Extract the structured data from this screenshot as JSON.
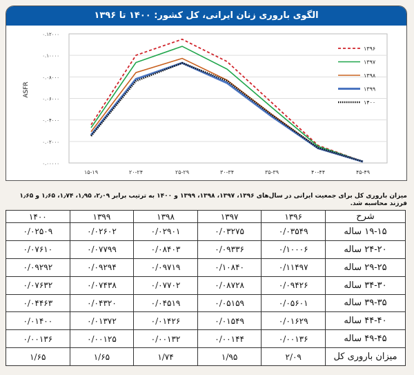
{
  "chart_data": {
    "type": "line",
    "title": "الگوی باروری زنان ایرانی، کل کشور: ۱۴۰۰ تا ۱۳۹۶",
    "ylabel": "ASFR",
    "xlabel": "",
    "ylim": [
      0,
      0.12
    ],
    "yticks": [
      "۰.۰۰۰۰۰",
      "۰.۰۲۰۰۰",
      "۰.۰۴۰۰۰",
      "۰.۰۶۰۰۰",
      "۰.۰۸۰۰۰",
      "۰.۱۰۰۰۰",
      "۰.۱۲۰۰۰"
    ],
    "categories": [
      "۱۵-۱۹",
      "۲۰-۲۴",
      "۲۵-۲۹",
      "۳۰-۳۴",
      "۳۵-۳۹",
      "۴۰-۴۴",
      "۴۵-۴۹"
    ],
    "grid": true,
    "legend": "right",
    "series": [
      {
        "name": "۱۳۹۶",
        "color": "#d0232a",
        "style": "dashed",
        "values": [
          0.03549,
          0.10006,
          0.11497,
          0.09426,
          0.05601,
          0.01629,
          0.00136
        ]
      },
      {
        "name": "۱۳۹۷",
        "color": "#1ea54a",
        "style": "solid",
        "values": [
          0.03275,
          0.09336,
          0.1084,
          0.08728,
          0.05159,
          0.01549,
          0.00144
        ]
      },
      {
        "name": "۱۳۹۸",
        "color": "#c8601e",
        "style": "solid",
        "values": [
          0.02901,
          0.08403,
          0.09719,
          0.07702,
          0.04519,
          0.01426,
          0.00132
        ]
      },
      {
        "name": "۱۳۹۹",
        "color": "#4a74c0",
        "style": "thick",
        "values": [
          0.02602,
          0.07799,
          0.09294,
          0.07438,
          0.0432,
          0.01372,
          0.00125
        ]
      },
      {
        "name": "۱۴۰۰",
        "color": "#111111",
        "style": "dotted",
        "values": [
          0.02509,
          0.0761,
          0.09292,
          0.07632,
          0.04463,
          0.014,
          0.00136
        ]
      }
    ]
  },
  "caption": "میزان باروری کل برای جمعیت ایرانی در سال‌های ۱۳۹۶، ۱۳۹۷، ۱۳۹۸، ۱۳۹۹ و ۱۴۰۰ به ترتیب برابر ۲٫۰۹، ۱٫۹۵، ۱٫۷۴، ۱٫۶۵ و ۱٫۶۵ فرزند محاسبه شد.",
  "table": {
    "headers": [
      "شرح",
      "۱۳۹۶",
      "۱۳۹۷",
      "۱۳۹۸",
      "۱۳۹۹",
      "۱۴۰۰"
    ],
    "rows": [
      [
        "۱۹-۱۵ ساله",
        "۰/۰۳۵۴۹",
        "۰/۰۳۲۷۵",
        "۰/۰۲۹۰۱",
        "۰/۰۲۶۰۲",
        "۰/۰۲۵۰۹"
      ],
      [
        "۲۴-۲۰ ساله",
        "۰/۱۰۰۰۶",
        "۰/۰۹۳۳۶",
        "۰/۰۸۴۰۳",
        "۰/۰۷۷۹۹",
        "۰/۰۷۶۱۰"
      ],
      [
        "۲۹-۲۵ ساله",
        "۰/۱۱۴۹۷",
        "۰/۱۰۸۴۰",
        "۰/۰۹۷۱۹",
        "۰/۰۹۲۹۴",
        "۰/۰۹۲۹۲"
      ],
      [
        "۳۴-۳۰ ساله",
        "۰/۰۹۴۲۶",
        "۰/۰۸۷۲۸",
        "۰/۰۷۷۰۲",
        "۰/۰۷۴۳۸",
        "۰/۰۷۶۳۲"
      ],
      [
        "۳۹-۳۵ ساله",
        "۰/۰۵۶۰۱",
        "۰/۰۵۱۵۹",
        "۰/۰۴۵۱۹",
        "۰/۰۴۳۲۰",
        "۰/۰۴۴۶۳"
      ],
      [
        "۴۴-۴۰ ساله",
        "۰/۰۱۶۲۹",
        "۰/۰۱۵۴۹",
        "۰/۰۱۴۲۶",
        "۰/۰۱۳۷۲",
        "۰/۰۱۴۰۰"
      ],
      [
        "۴۹-۴۵ ساله",
        "۰/۰۰۱۳۶",
        "۰/۰۰۱۴۴",
        "۰/۰۰۱۳۲",
        "۰/۰۰۱۲۵",
        "۰/۰۰۱۳۶"
      ],
      [
        "میزان باروری کل",
        "۲/۰۹",
        "۱/۹۵",
        "۱/۷۴",
        "۱/۶۵",
        "۱/۶۵"
      ]
    ]
  }
}
